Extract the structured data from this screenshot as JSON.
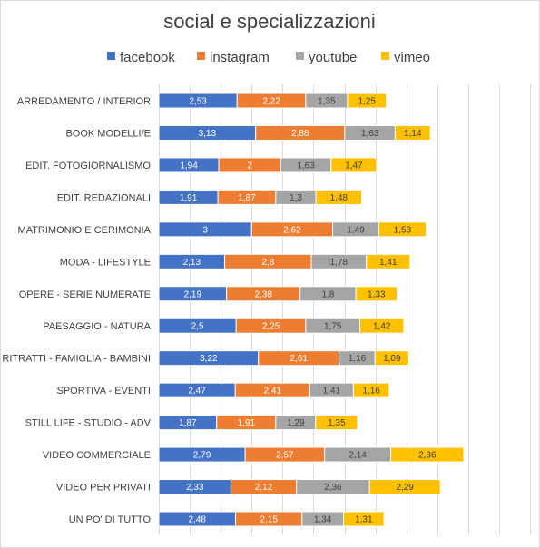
{
  "chart_data": {
    "type": "bar",
    "orientation": "horizontal",
    "stacked": true,
    "title": "social e specializzazioni",
    "legend_position": "top",
    "grid": true,
    "xlim": [
      0,
      12
    ],
    "x_major_unit": 1,
    "categories": [
      "ARREDAMENTO / INTERIOR",
      "BOOK MODELLI/E",
      "EDIT. FOTOGIORNALISMO",
      "EDIT. REDAZIONALI",
      "MATRIMONIO E CERIMONIA",
      "MODA - LIFESTYLE",
      "OPERE - SERIE NUMERATE",
      "PAESAGGIO - NATURA",
      "RITRATTI - FAMIGLIA - BAMBINI",
      "SPORTIVA - EVENTI",
      "STILL LIFE - STUDIO - ADV",
      "VIDEO COMMERCIALE",
      "VIDEO PER PRIVATI",
      "UN PO' DI TUTTO"
    ],
    "series": [
      {
        "name": "facebook",
        "color": "#4472c4",
        "values": [
          2.53,
          3.13,
          1.94,
          1.91,
          3,
          2.13,
          2.19,
          2.5,
          3.22,
          2.47,
          1.87,
          2.79,
          2.33,
          2.48
        ],
        "labels": [
          "2,53",
          "3,13",
          "1,94",
          "1,91",
          "3",
          "2,13",
          "2,19",
          "2,5",
          "3,22",
          "2,47",
          "1,87",
          "2,79",
          "2,33",
          "2,48"
        ]
      },
      {
        "name": "instagram",
        "color": "#ed7d31",
        "values": [
          2.22,
          2.88,
          2,
          1.87,
          2.62,
          2.8,
          2.38,
          2.25,
          2.61,
          2.41,
          1.91,
          2.57,
          2.12,
          2.15
        ],
        "labels": [
          "2,22",
          "2,88",
          "2",
          "1,87",
          "2,62",
          "2,8",
          "2,38",
          "2,25",
          "2,61",
          "2,41",
          "1,91",
          "2,57",
          "2,12",
          "2,15"
        ]
      },
      {
        "name": "youtube",
        "color": "#a5a5a5",
        "values": [
          1.35,
          1.63,
          1.63,
          1.3,
          1.49,
          1.78,
          1.8,
          1.75,
          1.16,
          1.41,
          1.29,
          2.14,
          2.36,
          1.34
        ],
        "labels": [
          "1,35",
          "1,63",
          "1,63",
          "1,3",
          "1,49",
          "1,78",
          "1,8",
          "1,75",
          "1,16",
          "1,41",
          "1,29",
          "2,14",
          "2,36",
          "1,34"
        ]
      },
      {
        "name": "vimeo",
        "color": "#ffc000",
        "values": [
          1.25,
          1.14,
          1.47,
          1.48,
          1.53,
          1.41,
          1.33,
          1.42,
          1.09,
          1.16,
          1.35,
          2.36,
          2.29,
          1.31
        ],
        "labels": [
          "1,25",
          "1,14",
          "1,47",
          "1,48",
          "1,53",
          "1,41",
          "1,33",
          "1,42",
          "1,09",
          "1,16",
          "1,35",
          "2,36",
          "2,29",
          "1,31"
        ]
      }
    ]
  }
}
